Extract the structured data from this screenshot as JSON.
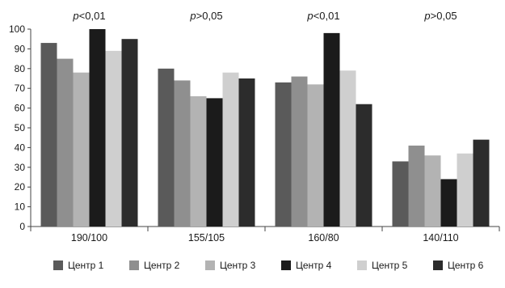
{
  "chart_data": {
    "type": "bar",
    "categories": [
      "190/100",
      "155/105",
      "160/80",
      "140/110"
    ],
    "annotations": [
      {
        "p": "p",
        "rest": "<0,01"
      },
      {
        "p": "p",
        "rest": ">0,05"
      },
      {
        "p": "p",
        "rest": "<0,01"
      },
      {
        "p": "p",
        "rest": ">0,05"
      }
    ],
    "series": [
      {
        "name": "Центр 1",
        "color": "#5a5a5a",
        "values": [
          93,
          80,
          73,
          33
        ]
      },
      {
        "name": "Центр 2",
        "color": "#8f8f8f",
        "values": [
          85,
          74,
          76,
          41
        ]
      },
      {
        "name": "Центр 3",
        "color": "#b3b3b3",
        "values": [
          78,
          66,
          72,
          36
        ]
      },
      {
        "name": "Центр 4",
        "color": "#1b1b1b",
        "values": [
          100,
          65,
          98,
          24
        ]
      },
      {
        "name": "Центр 5",
        "color": "#cfcfcf",
        "values": [
          89,
          78,
          79,
          37
        ]
      },
      {
        "name": "Центр 6",
        "color": "#2c2c2c",
        "values": [
          95,
          75,
          62,
          44
        ]
      }
    ],
    "ylim": [
      0,
      100
    ],
    "yticks": [
      0,
      10,
      20,
      30,
      40,
      50,
      60,
      70,
      80,
      90,
      100
    ],
    "grid": false,
    "legend": "bottom"
  }
}
